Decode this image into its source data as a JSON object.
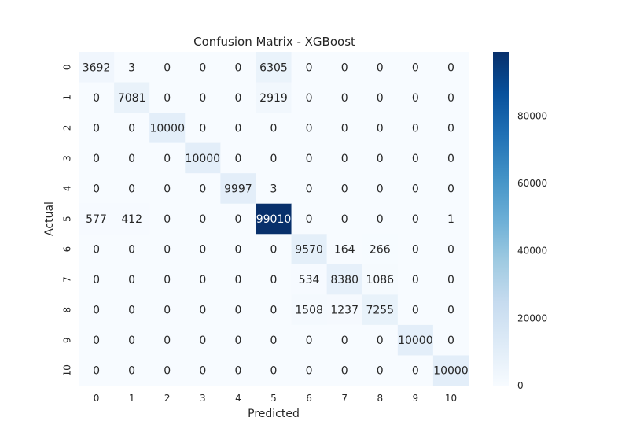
{
  "chart_data": {
    "type": "heatmap",
    "title": "Confusion Matrix - XGBoost",
    "xlabel": "Predicted",
    "ylabel": "Actual",
    "x_categories": [
      "0",
      "1",
      "2",
      "3",
      "4",
      "5",
      "6",
      "7",
      "8",
      "9",
      "10"
    ],
    "y_categories": [
      "0",
      "1",
      "2",
      "3",
      "4",
      "5",
      "6",
      "7",
      "8",
      "9",
      "10"
    ],
    "matrix": [
      [
        3692,
        3,
        0,
        0,
        0,
        6305,
        0,
        0,
        0,
        0,
        0
      ],
      [
        0,
        7081,
        0,
        0,
        0,
        2919,
        0,
        0,
        0,
        0,
        0
      ],
      [
        0,
        0,
        10000,
        0,
        0,
        0,
        0,
        0,
        0,
        0,
        0
      ],
      [
        0,
        0,
        0,
        10000,
        0,
        0,
        0,
        0,
        0,
        0,
        0
      ],
      [
        0,
        0,
        0,
        0,
        9997,
        3,
        0,
        0,
        0,
        0,
        0
      ],
      [
        577,
        412,
        0,
        0,
        0,
        99010,
        0,
        0,
        0,
        0,
        1
      ],
      [
        0,
        0,
        0,
        0,
        0,
        0,
        9570,
        164,
        266,
        0,
        0
      ],
      [
        0,
        0,
        0,
        0,
        0,
        0,
        534,
        8380,
        1086,
        0,
        0
      ],
      [
        0,
        0,
        0,
        0,
        0,
        0,
        1508,
        1237,
        7255,
        0,
        0
      ],
      [
        0,
        0,
        0,
        0,
        0,
        0,
        0,
        0,
        0,
        10000,
        0
      ],
      [
        0,
        0,
        0,
        0,
        0,
        0,
        0,
        0,
        0,
        0,
        10000
      ]
    ],
    "colormap": "Blues",
    "vmin": 0,
    "vmax": 99010,
    "colorbar_ticks": [
      0,
      20000,
      40000,
      60000,
      80000
    ],
    "colorbar_tick_labels": [
      "0",
      "20000",
      "40000",
      "60000",
      "80000"
    ],
    "annotations": true,
    "grid": false,
    "colorbar_position": "right"
  }
}
